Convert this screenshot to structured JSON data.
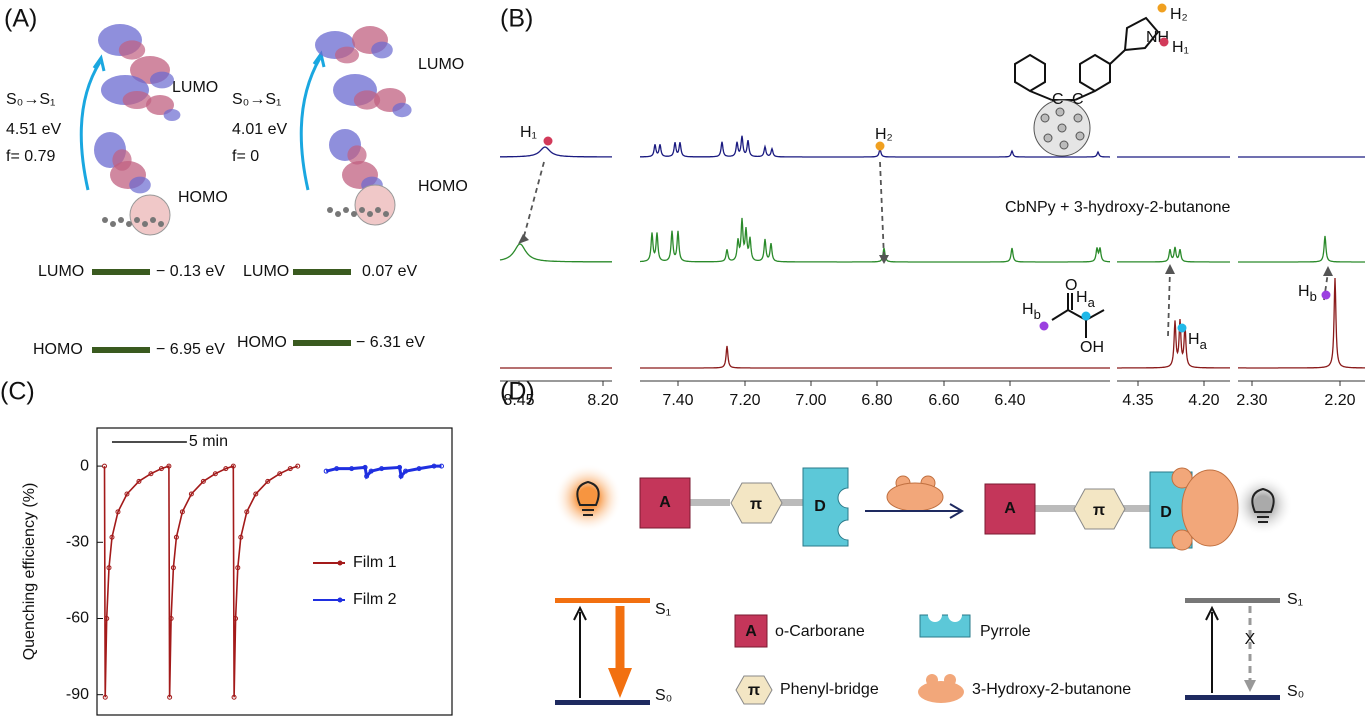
{
  "panel_a": {
    "label": "(A)",
    "columns": [
      {
        "transition": "S₀→S₁",
        "energy": "4.51 eV",
        "oscillator": "f= 0.79",
        "lumo_label": "LUMO",
        "homo_label": "HOMO",
        "levels": [
          {
            "name": "LUMO",
            "energy": "− 0.13 eV"
          },
          {
            "name": "HOMO",
            "energy": "− 6.95 eV"
          }
        ]
      },
      {
        "transition": "S₀→S₁",
        "energy": "4.01 eV",
        "oscillator": "f= 0",
        "lumo_label": "LUMO",
        "homo_label": "HOMO",
        "levels": [
          {
            "name": "LUMO",
            "energy": "0.07 eV"
          },
          {
            "name": "HOMO",
            "energy": "− 6.31 eV"
          }
        ]
      }
    ]
  },
  "panel_b": {
    "label": "(B)",
    "h1": "H₁",
    "h2": "H₂",
    "nh": "NH",
    "carbon": "C",
    "mixture": "CbNPy + 3-hydroxy-2-butanone",
    "ha": {
      "base": "H",
      "sub": "a"
    },
    "hb": {
      "base": "H",
      "sub": "b"
    },
    "oxygen": "O",
    "hydroxyl": "OH",
    "ticks": [
      "8.45",
      "8.20",
      "7.40",
      "7.20",
      "7.00",
      "6.80",
      "6.60",
      "6.40",
      "4.35",
      "4.20",
      "2.30",
      "2.20"
    ]
  },
  "chart_data": {
    "type": "line",
    "label": "(C)",
    "ylabel": "Quenching efficiency (%)",
    "ylim": [
      -98,
      15
    ],
    "yticks": [
      0,
      -30,
      -60,
      -90
    ],
    "xlim": [
      0,
      23.7
    ],
    "scale_bar": {
      "label": "5 min",
      "length": 5
    },
    "series": [
      {
        "name": "Film 1",
        "color": "#a31a1a",
        "x": [
          0.5,
          0.55,
          0.65,
          0.8,
          1.0,
          1.4,
          2.0,
          2.8,
          3.6,
          4.3,
          4.8,
          4.85,
          4.95,
          5.1,
          5.3,
          5.7,
          6.3,
          7.1,
          7.9,
          8.6,
          9.1,
          9.15,
          9.25,
          9.4,
          9.6,
          10.0,
          10.6,
          11.4,
          12.2,
          12.9,
          13.4
        ],
        "values": [
          0,
          -91,
          -60,
          -40,
          -28,
          -18,
          -11,
          -6,
          -3,
          -1,
          0,
          -91,
          -60,
          -40,
          -28,
          -18,
          -11,
          -6,
          -3,
          -1,
          0,
          -91,
          -60,
          -40,
          -28,
          -18,
          -11,
          -6,
          -3,
          -1,
          0
        ]
      },
      {
        "name": "Film 2",
        "color": "#1f2fe0",
        "x": [
          15.3,
          16,
          17,
          17.9,
          18,
          18.3,
          19,
          20.2,
          20.3,
          20.6,
          21.5,
          22.5,
          23
        ],
        "values": [
          -2,
          -1,
          -1,
          -0.5,
          -4,
          -2,
          -1,
          -0.5,
          -4,
          -2,
          -1,
          0,
          0
        ]
      }
    ]
  },
  "panel_d": {
    "label": "(D)",
    "acceptor": "A",
    "bridge": "π",
    "donor": "D",
    "s1": "S₁",
    "s0": "S₀",
    "blocked": "X",
    "legend": {
      "acceptor": "o-Carborane",
      "donor": "Pyrrole",
      "bridge": "Phenyl-bridge",
      "analyte": "3-Hydroxy-2-butanone"
    }
  }
}
